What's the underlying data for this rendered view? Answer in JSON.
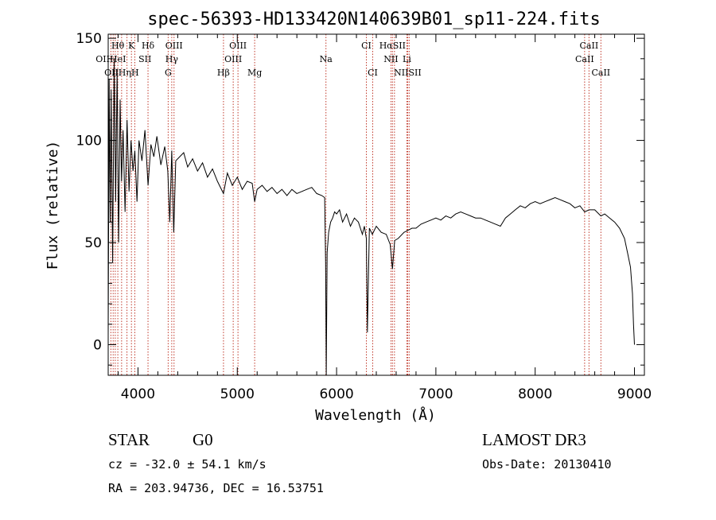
{
  "chart_data": {
    "type": "line",
    "title": "spec-56393-HD133420N140639B01_sp11-224.fits",
    "xlabel": "Wavelength (Å)",
    "ylabel": "Flux (relative)",
    "xlim": [
      3700,
      9100
    ],
    "ylim": [
      -15,
      152
    ],
    "x_ticks": [
      4000,
      5000,
      6000,
      7000,
      8000,
      9000
    ],
    "y_ticks": [
      0,
      50,
      100,
      150
    ],
    "grid": false,
    "line_color": "#000000",
    "marker_color": "#c0392b",
    "series": [
      {
        "x": [
          3700,
          3710,
          3720,
          3730,
          3745,
          3760,
          3775,
          3790,
          3805,
          3820,
          3835,
          3850,
          3870,
          3890,
          3910,
          3930,
          3950,
          3968,
          3990,
          4010,
          4040,
          4070,
          4101,
          4130,
          4160,
          4190,
          4230,
          4270,
          4300,
          4320,
          4340,
          4360,
          4380,
          4420,
          4460,
          4500,
          4550,
          4600,
          4650,
          4700,
          4750,
          4800,
          4861,
          4900,
          4950,
          5000,
          5050,
          5100,
          5150,
          5175,
          5200,
          5250,
          5300,
          5350,
          5400,
          5450,
          5500,
          5550,
          5600,
          5650,
          5700,
          5750,
          5800,
          5850,
          5880,
          5890,
          5896,
          5905,
          5920,
          5940,
          5960,
          5980,
          6000,
          6030,
          6060,
          6100,
          6140,
          6180,
          6220,
          6260,
          6280,
          6300,
          6310,
          6330,
          6360,
          6400,
          6450,
          6500,
          6540,
          6563,
          6585,
          6620,
          6680,
          6720,
          6760,
          6800,
          6850,
          6900,
          6950,
          7000,
          7050,
          7100,
          7150,
          7200,
          7250,
          7300,
          7350,
          7400,
          7450,
          7500,
          7550,
          7600,
          7650,
          7700,
          7750,
          7800,
          7850,
          7900,
          7950,
          8000,
          8050,
          8100,
          8150,
          8200,
          8250,
          8300,
          8350,
          8400,
          8450,
          8498,
          8542,
          8600,
          8662,
          8700,
          8750,
          8800,
          8850,
          8900,
          8930,
          8960,
          8980,
          8990,
          9000
        ],
        "values": [
          5,
          130,
          60,
          125,
          40,
          140,
          70,
          135,
          50,
          120,
          80,
          105,
          65,
          110,
          75,
          100,
          85,
          95,
          70,
          100,
          90,
          105,
          78,
          98,
          92,
          102,
          88,
          97,
          85,
          60,
          95,
          55,
          90,
          92,
          94,
          87,
          91,
          85,
          89,
          82,
          86,
          80,
          74,
          84,
          78,
          82,
          76,
          80,
          79,
          70,
          76,
          78,
          75,
          77,
          74,
          76,
          73,
          76,
          74,
          75,
          76,
          77,
          74,
          73,
          72,
          40,
          -15,
          45,
          55,
          60,
          62,
          65,
          64,
          66,
          60,
          64,
          58,
          62,
          60,
          54,
          58,
          52,
          6,
          57,
          54,
          58,
          55,
          54,
          49,
          37,
          51,
          52,
          55,
          56,
          57,
          57,
          59,
          60,
          61,
          62,
          61,
          63,
          62,
          64,
          65,
          64,
          63,
          62,
          62,
          61,
          60,
          59,
          58,
          62,
          64,
          66,
          68,
          67,
          69,
          70,
          69,
          70,
          71,
          72,
          71,
          70,
          69,
          67,
          68,
          65,
          66,
          66,
          63,
          64,
          62,
          60,
          57,
          52,
          45,
          38,
          25,
          10,
          0
        ]
      }
    ],
    "spectral_lines": [
      {
        "label": "Hθ",
        "x": 3797,
        "row": 1
      },
      {
        "label": "K",
        "x": 3934,
        "row": 1
      },
      {
        "label": "Hδ",
        "x": 4101,
        "row": 1
      },
      {
        "label": "OIII",
        "x": 4363,
        "row": 1
      },
      {
        "label": "OIII",
        "x": 5007,
        "row": 1
      },
      {
        "label": "CI",
        "x": 6300,
        "row": 1
      },
      {
        "label": "HαSII",
        "x": 6563,
        "row": 1
      },
      {
        "label": "CaII",
        "x": 8542,
        "row": 1
      },
      {
        "label": "OIIHeI",
        "x": 3727,
        "row": 2
      },
      {
        "label": "SII",
        "x": 4070,
        "row": 2
      },
      {
        "label": "Hγ",
        "x": 4340,
        "row": 2
      },
      {
        "label": "OIII",
        "x": 4959,
        "row": 2
      },
      {
        "label": "Na",
        "x": 5893,
        "row": 2
      },
      {
        "label": "NII",
        "x": 6548,
        "row": 2
      },
      {
        "label": "Li",
        "x": 6708,
        "row": 2
      },
      {
        "label": "CaII",
        "x": 8498,
        "row": 2
      },
      {
        "label": "OIIHηH",
        "x": 3835,
        "row": 3
      },
      {
        "label": "G",
        "x": 4304,
        "row": 3
      },
      {
        "label": "Hβ",
        "x": 4861,
        "row": 3
      },
      {
        "label": "Mg",
        "x": 5175,
        "row": 3
      },
      {
        "label": "CI",
        "x": 6364,
        "row": 3
      },
      {
        "label": "NIISII",
        "x": 6716,
        "row": 3
      },
      {
        "label": "CaII",
        "x": 8662,
        "row": 3
      }
    ],
    "line_marker_x": [
      3727,
      3750,
      3771,
      3797,
      3835,
      3889,
      3934,
      3968,
      4101,
      4304,
      4340,
      4363,
      4861,
      4959,
      5007,
      5175,
      5893,
      6300,
      6364,
      6548,
      6563,
      6583,
      6708,
      6716,
      6731,
      8498,
      8542,
      8662
    ]
  },
  "info": {
    "object_class": "STAR",
    "subclass": "G0",
    "survey": "LAMOST DR3",
    "cz": "cz = -32.0 ± 54.1 km/s",
    "obs_date": "Obs-Date: 20130410",
    "coords": "RA = 203.94736, DEC =  16.53751"
  }
}
